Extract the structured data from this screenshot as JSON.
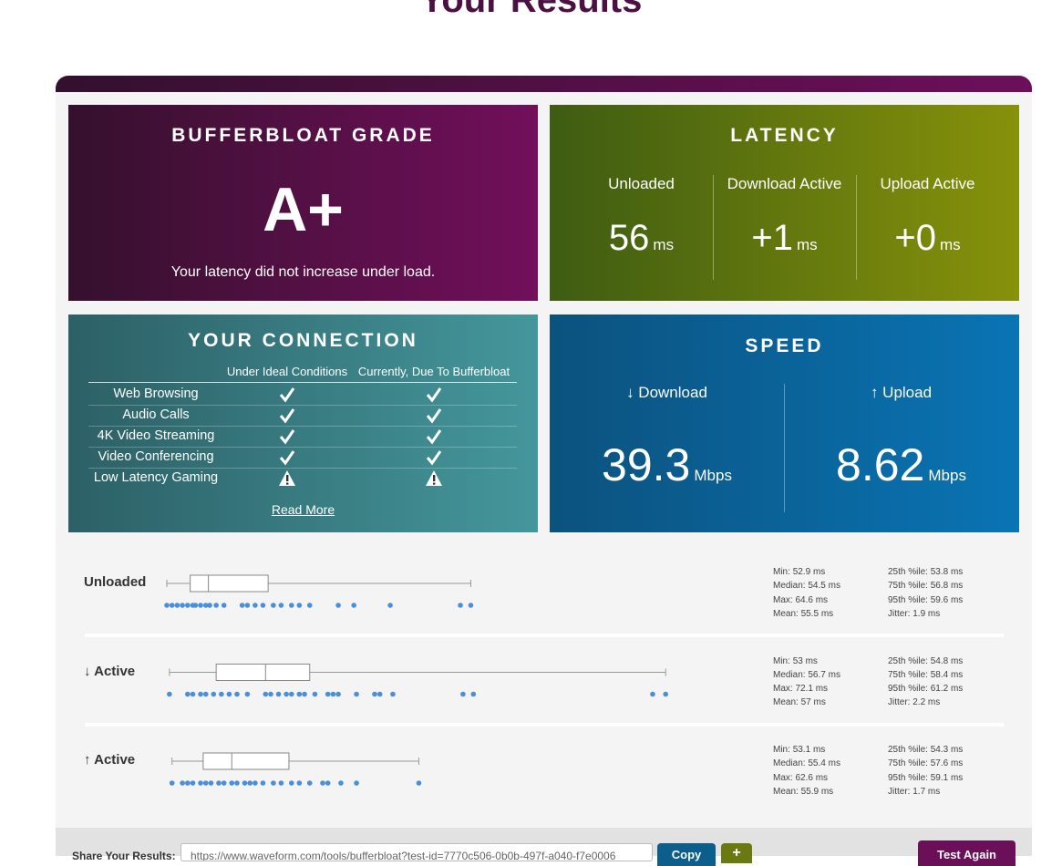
{
  "header": {
    "title": "Your Results"
  },
  "grade": {
    "heading": "BUFFERBLOAT GRADE",
    "grade": "A+",
    "note": "Your latency did not increase under load."
  },
  "latency": {
    "heading": "LATENCY",
    "items": [
      {
        "label": "Unloaded",
        "value": 56,
        "unit": "ms"
      },
      {
        "label": "Download Active",
        "value": "+1",
        "unit": "ms"
      },
      {
        "label": "Upload Active",
        "value": "+0",
        "unit": "ms"
      }
    ]
  },
  "connection": {
    "heading": "YOUR CONNECTION",
    "columns": [
      "Under Ideal Conditions",
      "Currently, Due To Bufferbloat"
    ],
    "rows": [
      {
        "label": "Web Browsing",
        "ideal": "check",
        "current": "check"
      },
      {
        "label": "Audio Calls",
        "ideal": "check",
        "current": "check"
      },
      {
        "label": "4K Video Streaming",
        "ideal": "check",
        "current": "check"
      },
      {
        "label": "Video Conferencing",
        "ideal": "check",
        "current": "check"
      },
      {
        "label": "Low Latency Gaming",
        "ideal": "warning",
        "current": "warning"
      }
    ],
    "read_more": "Read More"
  },
  "speed": {
    "heading": "SPEED",
    "items": [
      {
        "label": "↓ Download",
        "value": 39.3,
        "unit": "Mbps"
      },
      {
        "label": "↑ Upload",
        "value": 8.62,
        "unit": "Mbps"
      }
    ]
  },
  "stats": {
    "rows": [
      {
        "label": "Unloaded",
        "stats": [
          {
            "label": "Min:",
            "value": 52.9,
            "unit": "ms"
          },
          {
            "label": "Median:",
            "value": 54.5,
            "unit": "ms"
          },
          {
            "label": "Max:",
            "value": 64.6,
            "unit": "ms"
          },
          {
            "label": "Mean:",
            "value": 55.5,
            "unit": "ms"
          },
          {
            "label": "25th %ile:",
            "value": 53.8,
            "unit": "ms"
          },
          {
            "label": "75th %ile:",
            "value": 56.8,
            "unit": "ms"
          },
          {
            "label": "95th %ile:",
            "value": 59.6,
            "unit": "ms"
          },
          {
            "label": "Jitter:",
            "value": 1.9,
            "unit": "ms"
          }
        ],
        "samples": [
          52.9,
          53.1,
          53.3,
          53.5,
          53.7,
          53.9,
          54.0,
          54.2,
          54.4,
          54.55,
          54.8,
          55.1,
          55.8,
          56.0,
          56.3,
          56.6,
          57.0,
          57.3,
          57.7,
          58.0,
          58.4,
          59.5,
          60.1,
          61.5,
          64.2,
          64.6
        ]
      },
      {
        "label": "↓ Active",
        "stats": [
          {
            "label": "Min:",
            "value": 53,
            "unit": "ms"
          },
          {
            "label": "Median:",
            "value": 56.7,
            "unit": "ms"
          },
          {
            "label": "Max:",
            "value": 72.1,
            "unit": "ms"
          },
          {
            "label": "Mean:",
            "value": 57,
            "unit": "ms"
          },
          {
            "label": "25th %ile:",
            "value": 54.8,
            "unit": "ms"
          },
          {
            "label": "75th %ile:",
            "value": 58.4,
            "unit": "ms"
          },
          {
            "label": "95th %ile:",
            "value": 61.2,
            "unit": "ms"
          },
          {
            "label": "Jitter:",
            "value": 2.2,
            "unit": "ms"
          }
        ],
        "samples": [
          53.0,
          53.7,
          53.9,
          54.2,
          54.4,
          54.7,
          55.0,
          55.3,
          55.6,
          56.0,
          56.7,
          56.9,
          57.2,
          57.5,
          57.7,
          58.0,
          58.2,
          58.6,
          59.1,
          59.3,
          59.5,
          60.2,
          60.9,
          61.1,
          61.6,
          64.3,
          64.7,
          71.6,
          72.1
        ]
      },
      {
        "label": "↑ Active",
        "stats": [
          {
            "label": "Min:",
            "value": 53.1,
            "unit": "ms"
          },
          {
            "label": "Median:",
            "value": 55.4,
            "unit": "ms"
          },
          {
            "label": "Max:",
            "value": 62.6,
            "unit": "ms"
          },
          {
            "label": "Mean:",
            "value": 55.9,
            "unit": "ms"
          },
          {
            "label": "25th %ile:",
            "value": 54.3,
            "unit": "ms"
          },
          {
            "label": "75th %ile:",
            "value": 57.6,
            "unit": "ms"
          },
          {
            "label": "95th %ile:",
            "value": 59.1,
            "unit": "ms"
          },
          {
            "label": "Jitter:",
            "value": 1.7,
            "unit": "ms"
          }
        ],
        "samples": [
          53.1,
          53.5,
          53.7,
          53.9,
          54.2,
          54.4,
          54.6,
          54.9,
          55.1,
          55.4,
          55.6,
          55.9,
          56.1,
          56.3,
          56.6,
          57.0,
          57.3,
          57.7,
          58.0,
          58.4,
          58.9,
          59.1,
          59.6,
          60.2,
          62.6
        ]
      }
    ]
  },
  "footer": {
    "share_label": "Share Your Results:",
    "url": "https://www.waveform.com/tools/bufferbloat?test-id=7770c506-0b0b-497f-a040-f7e0006",
    "copy": "Copy",
    "plus": "+",
    "again": "Test Again"
  }
}
